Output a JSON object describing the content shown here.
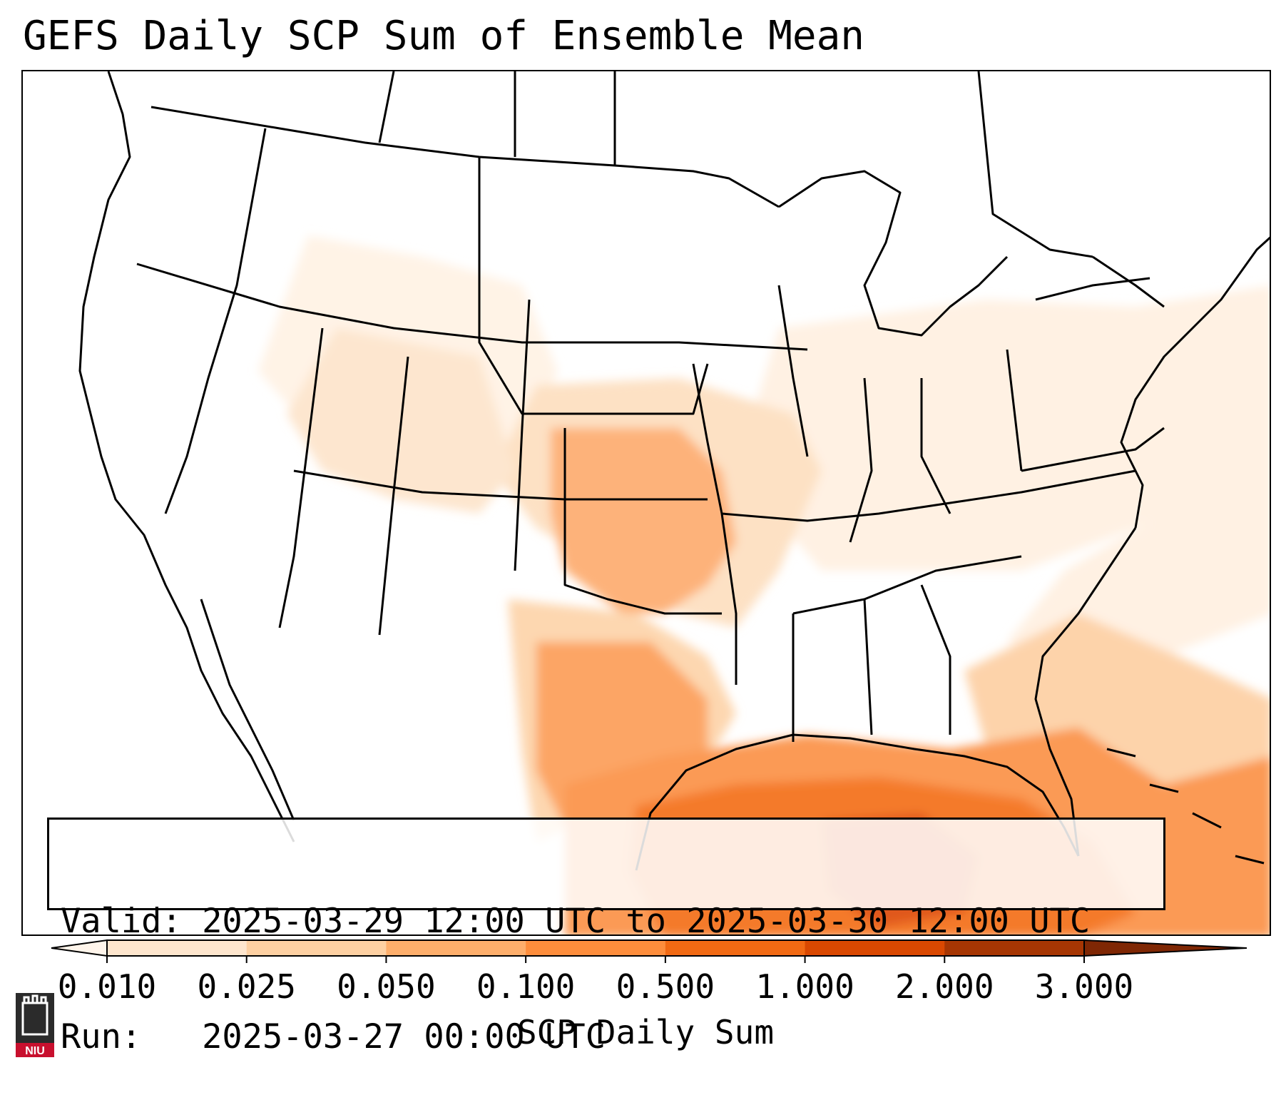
{
  "title": "GEFS Daily SCP Sum of Ensemble Mean",
  "info_box": {
    "valid_label": "Valid:",
    "valid_value": "2025-03-29 12:00 UTC to 2025-03-30 12:00 UTC",
    "run_label": "Run:",
    "run_value": "2025-03-27 00:00 UTC"
  },
  "colorbar": {
    "title": "SCP Daily Sum",
    "ticks": [
      "0.010",
      "0.025",
      "0.050",
      "0.100",
      "0.500",
      "1.000",
      "2.000",
      "3.000"
    ],
    "colors": [
      "#fee6ce",
      "#fdd0a2",
      "#fdae6b",
      "#fd8d3c",
      "#f16913",
      "#d94801",
      "#a63603"
    ],
    "under_color": "#fff5eb",
    "over_color": "#7f2704"
  },
  "logo": {
    "text": "NIU",
    "icon": "niu-logo-icon"
  }
}
